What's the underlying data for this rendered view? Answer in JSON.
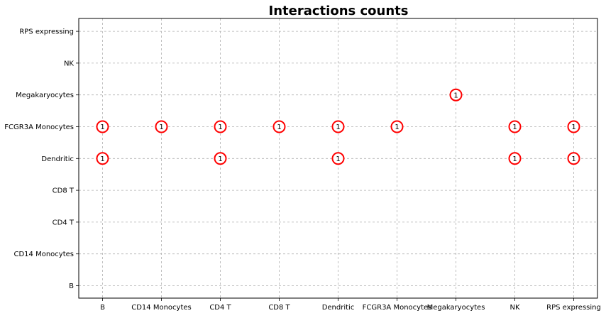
{
  "chart_data": {
    "type": "scatter",
    "title": "Interactions counts",
    "xlabel": "",
    "ylabel": "",
    "x_categories": [
      "B",
      "CD14 Monocytes",
      "CD4 T",
      "CD8 T",
      "Dendritic",
      "FCGR3A Monocytes",
      "Megakaryocytes",
      "NK",
      "RPS expressing"
    ],
    "y_categories": [
      "B",
      "CD14 Monocytes",
      "CD4 T",
      "CD8 T",
      "Dendritic",
      "FCGR3A Monocytes",
      "Megakaryocytes",
      "NK",
      "RPS expressing"
    ],
    "grid": true,
    "legend": "none",
    "colors": {
      "marker_edge": "#ff0000",
      "marker_fill": "#ffffff",
      "grid": "#b0b0b0",
      "axis": "#000000",
      "text": "#000000"
    },
    "points": [
      {
        "x": "B",
        "y": "FCGR3A Monocytes",
        "count": 1
      },
      {
        "x": "CD14 Monocytes",
        "y": "FCGR3A Monocytes",
        "count": 1
      },
      {
        "x": "CD4 T",
        "y": "FCGR3A Monocytes",
        "count": 1
      },
      {
        "x": "CD8 T",
        "y": "FCGR3A Monocytes",
        "count": 1
      },
      {
        "x": "Dendritic",
        "y": "FCGR3A Monocytes",
        "count": 1
      },
      {
        "x": "FCGR3A Monocytes",
        "y": "FCGR3A Monocytes",
        "count": 1
      },
      {
        "x": "NK",
        "y": "FCGR3A Monocytes",
        "count": 1
      },
      {
        "x": "RPS expressing",
        "y": "FCGR3A Monocytes",
        "count": 1
      },
      {
        "x": "B",
        "y": "Dendritic",
        "count": 1
      },
      {
        "x": "CD4 T",
        "y": "Dendritic",
        "count": 1
      },
      {
        "x": "Dendritic",
        "y": "Dendritic",
        "count": 1
      },
      {
        "x": "NK",
        "y": "Dendritic",
        "count": 1
      },
      {
        "x": "RPS expressing",
        "y": "Dendritic",
        "count": 1
      },
      {
        "x": "Megakaryocytes",
        "y": "Megakaryocytes",
        "count": 1
      }
    ]
  }
}
